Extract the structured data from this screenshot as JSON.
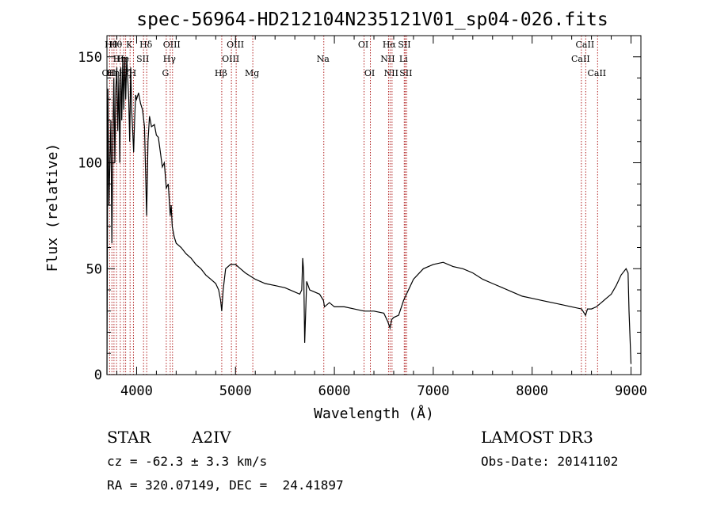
{
  "chart_data": {
    "type": "line",
    "title": "spec-56964-HD212104N235121V01_sp04-026.fits",
    "xlabel": "Wavelength (Å)",
    "ylabel": "Flux (relative)",
    "xlim": [
      3700,
      9100
    ],
    "ylim": [
      0,
      160
    ],
    "xticks": [
      4000,
      5000,
      6000,
      7000,
      8000,
      9000
    ],
    "yticks": [
      0,
      50,
      100,
      150
    ],
    "grid": false,
    "series": [
      {
        "color": "#000000",
        "x": [
          3700,
          3710,
          3720,
          3730,
          3740,
          3750,
          3760,
          3770,
          3780,
          3790,
          3800,
          3810,
          3820,
          3830,
          3840,
          3850,
          3860,
          3870,
          3880,
          3890,
          3900,
          3910,
          3920,
          3930,
          3940,
          3950,
          3960,
          3970,
          3980,
          3990,
          4000,
          4020,
          4040,
          4060,
          4080,
          4101,
          4115,
          4130,
          4150,
          4180,
          4200,
          4220,
          4240,
          4260,
          4280,
          4300,
          4320,
          4340,
          4350,
          4360,
          4380,
          4400,
          4450,
          4500,
          4550,
          4600,
          4650,
          4700,
          4750,
          4800,
          4830,
          4850,
          4861,
          4875,
          4900,
          4950,
          5000,
          5050,
          5100,
          5200,
          5300,
          5400,
          5500,
          5600,
          5650,
          5670,
          5680,
          5690,
          5700,
          5720,
          5750,
          5800,
          5850,
          5890,
          5900,
          5950,
          6000,
          6100,
          6200,
          6300,
          6400,
          6500,
          6540,
          6563,
          6580,
          6600,
          6650,
          6700,
          6800,
          6900,
          7000,
          7100,
          7200,
          7300,
          7400,
          7500,
          7600,
          7700,
          7800,
          7900,
          8000,
          8100,
          8200,
          8300,
          8400,
          8500,
          8540,
          8560,
          8600,
          8650,
          8700,
          8750,
          8800,
          8850,
          8900,
          8950,
          8970,
          8980,
          9000
        ],
        "y": [
          0,
          135,
          80,
          100,
          120,
          62,
          110,
          140,
          100,
          135,
          145,
          115,
          140,
          100,
          145,
          120,
          150,
          125,
          150,
          130,
          150,
          140,
          130,
          110,
          145,
          125,
          115,
          105,
          120,
          132,
          130,
          133,
          128,
          125,
          117,
          75,
          110,
          122,
          117,
          118,
          113,
          112,
          105,
          98,
          100,
          88,
          90,
          75,
          80,
          70,
          65,
          62,
          60,
          57,
          55,
          52,
          50,
          47,
          45,
          43,
          40,
          35,
          30,
          40,
          50,
          52,
          52,
          50,
          48,
          45,
          43,
          42,
          41,
          39,
          38,
          40,
          55,
          48,
          15,
          44,
          40,
          39,
          38,
          35,
          32,
          34,
          32,
          32,
          31,
          30,
          30,
          29,
          25,
          22,
          26,
          27,
          28,
          35,
          45,
          50,
          52,
          53,
          51,
          50,
          48,
          45,
          43,
          41,
          39,
          37,
          36,
          35,
          34,
          33,
          32,
          31,
          28,
          31,
          31,
          32,
          34,
          36,
          38,
          42,
          47,
          50,
          48,
          30,
          5
        ]
      }
    ],
    "lines": [
      {
        "wl": 3727,
        "label": "OII",
        "row": 2,
        "side": "left"
      },
      {
        "wl": 3750,
        "label": "Hθ",
        "row": 0,
        "side": "left"
      },
      {
        "wl": 3771,
        "label": "Hη",
        "row": 2,
        "side": "left"
      },
      {
        "wl": 3797,
        "label": "Hθ",
        "row": 0,
        "side": "left"
      },
      {
        "wl": 3835,
        "label": "Hη",
        "row": 1,
        "side": "left"
      },
      {
        "wl": 3869,
        "label": "He",
        "row": 1,
        "side": "left"
      },
      {
        "wl": 3889,
        "label": "Hζ",
        "row": 2,
        "side": "left"
      },
      {
        "wl": 3934,
        "label": "K",
        "row": 0,
        "side": "left"
      },
      {
        "wl": 3968,
        "label": "H",
        "row": 2,
        "side": "left"
      },
      {
        "wl": 4070,
        "label": "SII",
        "row": 1,
        "side": "left"
      },
      {
        "wl": 4102,
        "label": "Hδ",
        "row": 0,
        "side": "left"
      },
      {
        "wl": 4300,
        "label": "G",
        "row": 2,
        "side": "left"
      },
      {
        "wl": 4340,
        "label": "Hγ",
        "row": 1,
        "side": "left"
      },
      {
        "wl": 4363,
        "label": "OIII",
        "row": 0,
        "side": "left"
      },
      {
        "wl": 4861,
        "label": "Hβ",
        "row": 2,
        "side": "left"
      },
      {
        "wl": 4959,
        "label": "OIII",
        "row": 1,
        "side": "left"
      },
      {
        "wl": 5007,
        "label": "OIII",
        "row": 0,
        "side": "left"
      },
      {
        "wl": 5175,
        "label": "Mg",
        "row": 2,
        "side": "left"
      },
      {
        "wl": 5893,
        "label": "Na",
        "row": 1,
        "side": "left"
      },
      {
        "wl": 6300,
        "label": "OI",
        "row": 0,
        "side": "left"
      },
      {
        "wl": 6364,
        "label": "OI",
        "row": 2,
        "side": "left"
      },
      {
        "wl": 6548,
        "label": "NII",
        "row": 1,
        "side": "left"
      },
      {
        "wl": 6563,
        "label": "Hα",
        "row": 0,
        "side": "left"
      },
      {
        "wl": 6583,
        "label": "NII",
        "row": 2,
        "side": "left"
      },
      {
        "wl": 6707,
        "label": "Li",
        "row": 1,
        "side": "left"
      },
      {
        "wl": 6716,
        "label": "SII",
        "row": 0,
        "side": "left"
      },
      {
        "wl": 6731,
        "label": "SII",
        "row": 2,
        "side": "left"
      },
      {
        "wl": 8498,
        "label": "CaII",
        "row": 1,
        "side": "left"
      },
      {
        "wl": 8542,
        "label": "CaII",
        "row": 0,
        "side": "left"
      },
      {
        "wl": 8662,
        "label": "CaII",
        "row": 2,
        "side": "left"
      }
    ]
  },
  "info": {
    "object_class": "STAR",
    "subclass": "A2IV",
    "survey": "LAMOST DR3",
    "cz": "cz = -62.3 ± 3.3 km/s",
    "obs_date": "Obs-Date: 20141102",
    "coords": "RA = 320.07149, DEC =  24.41897"
  }
}
